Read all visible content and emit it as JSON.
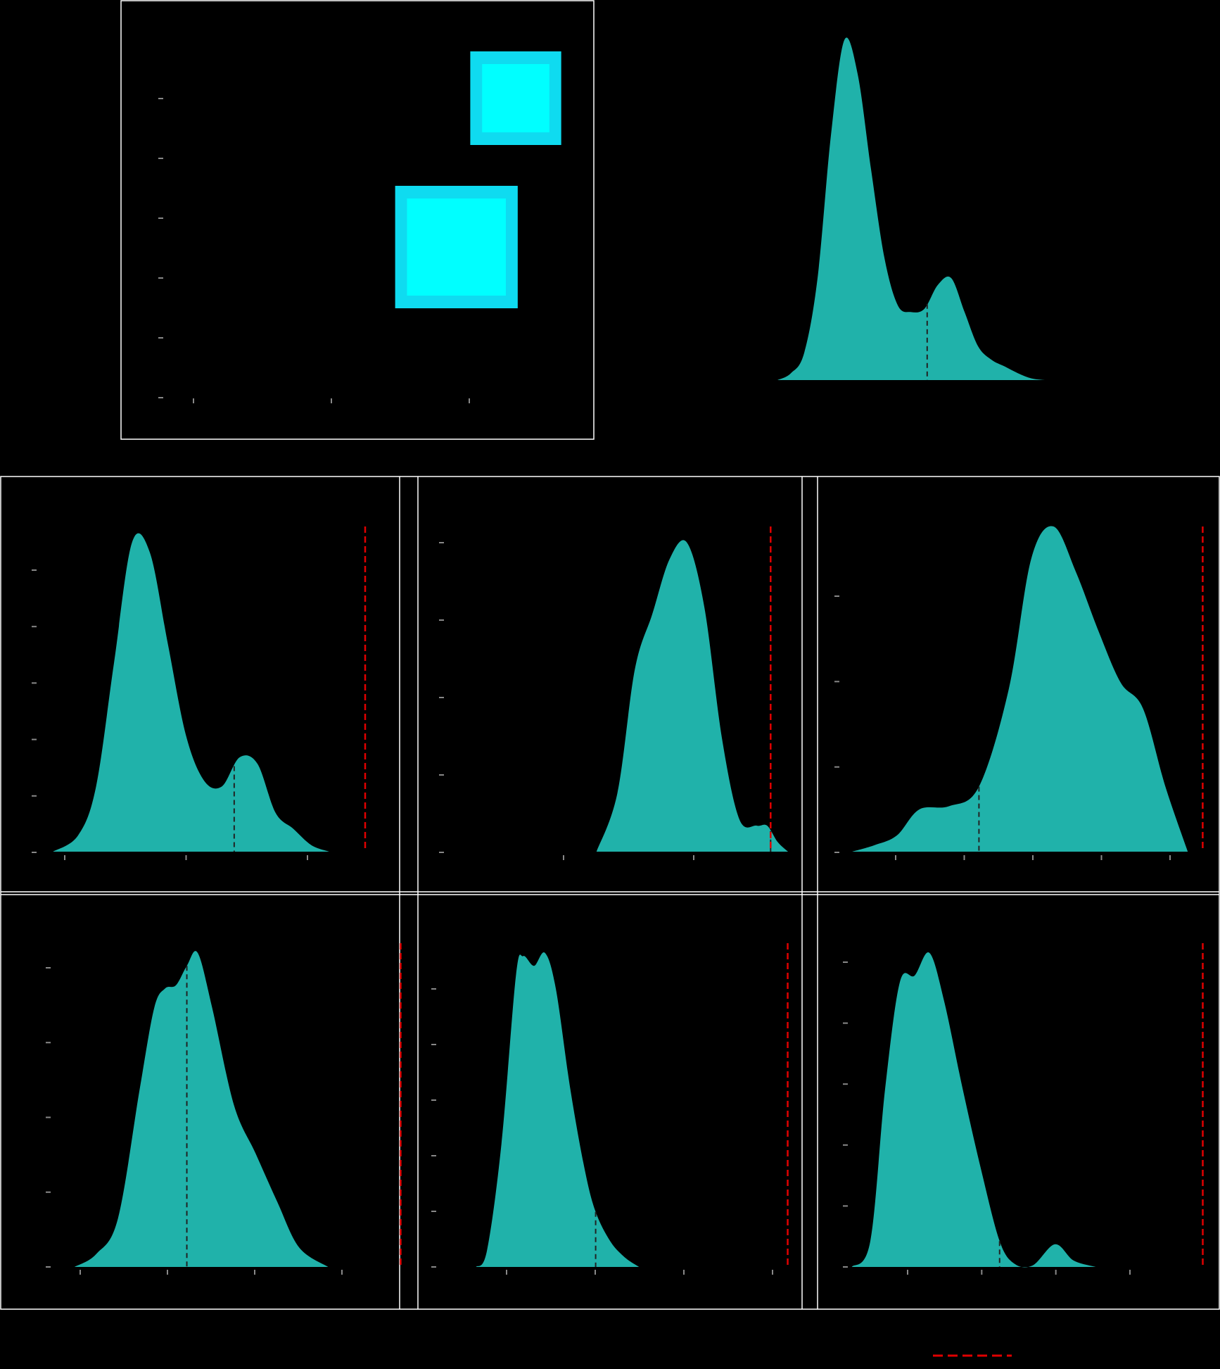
{
  "colors": {
    "background": "#000000",
    "kde_fill": "#20b2aa",
    "box_outer": "#0fdbf0",
    "box_inner": "#00ffff",
    "frame": "#ffffff",
    "tick": "#888888",
    "median_line": "#222222",
    "reference_line": "#e00000"
  },
  "legend": {
    "placement": "bottom-right",
    "entries": [
      {
        "style": "dashed",
        "color": "#e00000",
        "label": ""
      }
    ]
  },
  "chart_data": [
    {
      "id": "panel-box",
      "type": "box",
      "title": "",
      "xlabel": "",
      "ylabel": "",
      "xlim": [
        0,
        1
      ],
      "ylim": [
        0,
        1
      ],
      "xtick_count": 3,
      "ytick_count": 6,
      "boxes": [
        {
          "q1": 0.7,
          "q3": 0.93,
          "inner_q1": 0.73,
          "inner_q3": 0.9,
          "whisker_low": 0.7,
          "whisker_high": 0.93,
          "level": 0.89
        },
        {
          "q1": 0.51,
          "q3": 0.82,
          "inner_q1": 0.54,
          "inner_q3": 0.79,
          "whisker_low": 0.51,
          "whisker_high": 0.82,
          "level": 0.47
        }
      ]
    },
    {
      "id": "panel-kde-top",
      "type": "area",
      "title": "",
      "xlabel": "",
      "ylabel": "",
      "xlim": [
        0,
        1
      ],
      "ylim": [
        0,
        1
      ],
      "median": 0.56,
      "reference": null,
      "x": [
        0,
        0.05,
        0.1,
        0.15,
        0.2,
        0.25,
        0.3,
        0.35,
        0.4,
        0.45,
        0.5,
        0.55,
        0.6,
        0.65,
        0.7,
        0.75,
        0.8,
        0.85,
        0.9,
        0.95,
        1
      ],
      "y": [
        0,
        0.02,
        0.08,
        0.3,
        0.72,
        1.0,
        0.9,
        0.62,
        0.36,
        0.22,
        0.2,
        0.21,
        0.28,
        0.3,
        0.2,
        0.1,
        0.06,
        0.04,
        0.02,
        0.005,
        0
      ]
    },
    {
      "id": "panel-kde-1",
      "type": "area",
      "title": "",
      "xlabel": "",
      "ylabel": "",
      "xlim": [
        0,
        1
      ],
      "ylim": [
        0,
        1
      ],
      "median": 0.535,
      "reference": 0.9,
      "xtick_count": 3,
      "ytick_count": 6,
      "x": [
        0.03,
        0.1,
        0.15,
        0.2,
        0.25,
        0.3,
        0.35,
        0.4,
        0.45,
        0.5,
        0.55,
        0.6,
        0.65,
        0.7,
        0.75,
        0.8
      ],
      "y": [
        0,
        0.05,
        0.2,
        0.58,
        0.95,
        0.92,
        0.64,
        0.36,
        0.22,
        0.2,
        0.29,
        0.27,
        0.12,
        0.07,
        0.02,
        0
      ]
    },
    {
      "id": "panel-kde-2",
      "type": "area",
      "title": "",
      "xlabel": "",
      "ylabel": "",
      "xlim": [
        0,
        1
      ],
      "ylim": [
        0,
        1
      ],
      "median": 0.94,
      "reference": 0.94,
      "xtick_count": 2,
      "ytick_count": 5,
      "x": [
        0.44,
        0.5,
        0.55,
        0.6,
        0.65,
        0.7,
        0.75,
        0.8,
        0.85,
        0.9,
        0.93,
        0.96,
        0.99
      ],
      "y": [
        0,
        0.18,
        0.56,
        0.73,
        0.9,
        0.95,
        0.75,
        0.35,
        0.1,
        0.08,
        0.08,
        0.03,
        0
      ]
    },
    {
      "id": "panel-kde-3",
      "type": "area",
      "title": "",
      "xlabel": "",
      "ylabel": "",
      "xlim": [
        0,
        1
      ],
      "ylim": [
        0,
        1
      ],
      "median": 0.38,
      "reference": 0.98,
      "xtick_count": 5,
      "ytick_count": 4,
      "x": [
        0.04,
        0.1,
        0.16,
        0.22,
        0.3,
        0.38,
        0.46,
        0.52,
        0.58,
        0.64,
        0.7,
        0.76,
        0.82,
        0.88,
        0.94
      ],
      "y": [
        0,
        0.02,
        0.05,
        0.13,
        0.14,
        0.2,
        0.5,
        0.9,
        1.0,
        0.86,
        0.68,
        0.52,
        0.44,
        0.2,
        0
      ]
    },
    {
      "id": "panel-kde-4",
      "type": "area",
      "title": "",
      "xlabel": "",
      "ylabel": "",
      "xlim": [
        0,
        1
      ],
      "ylim": [
        0,
        1
      ],
      "median": 0.37,
      "reference": 0.96,
      "xtick_count": 4,
      "ytick_count": 5,
      "x": [
        0.06,
        0.12,
        0.18,
        0.24,
        0.28,
        0.31,
        0.34,
        0.37,
        0.4,
        0.44,
        0.5,
        0.56,
        0.62,
        0.68,
        0.76
      ],
      "y": [
        0,
        0.04,
        0.15,
        0.55,
        0.8,
        0.86,
        0.87,
        0.93,
        0.97,
        0.8,
        0.5,
        0.35,
        0.2,
        0.06,
        0
      ]
    },
    {
      "id": "panel-kde-5",
      "type": "area",
      "title": "",
      "xlabel": "",
      "ylabel": "",
      "xlim": [
        0,
        1
      ],
      "ylim": [
        0,
        1
      ],
      "median": 0.44,
      "reference": 0.97,
      "xtick_count": 4,
      "ytick_count": 6,
      "x": [
        0.11,
        0.14,
        0.18,
        0.22,
        0.24,
        0.27,
        0.3,
        0.33,
        0.37,
        0.41,
        0.44,
        0.48,
        0.52,
        0.56
      ],
      "y": [
        0,
        0.05,
        0.38,
        0.9,
        0.96,
        0.93,
        0.97,
        0.86,
        0.55,
        0.3,
        0.17,
        0.08,
        0.03,
        0
      ]
    },
    {
      "id": "panel-kde-6",
      "type": "area",
      "title": "",
      "xlabel": "",
      "ylabel": "",
      "xlim": [
        0,
        1
      ],
      "ylim": [
        0,
        1
      ],
      "median": 0.43,
      "reference": 0.98,
      "xtick_count": 4,
      "ytick_count": 6,
      "x": [
        0.03,
        0.08,
        0.12,
        0.16,
        0.2,
        0.24,
        0.28,
        0.33,
        0.38,
        0.43,
        0.47,
        0.52,
        0.58,
        0.63,
        0.69
      ],
      "y": [
        0,
        0.08,
        0.55,
        0.88,
        0.9,
        0.97,
        0.82,
        0.55,
        0.3,
        0.08,
        0.01,
        0.005,
        0.07,
        0.02,
        0
      ]
    }
  ]
}
